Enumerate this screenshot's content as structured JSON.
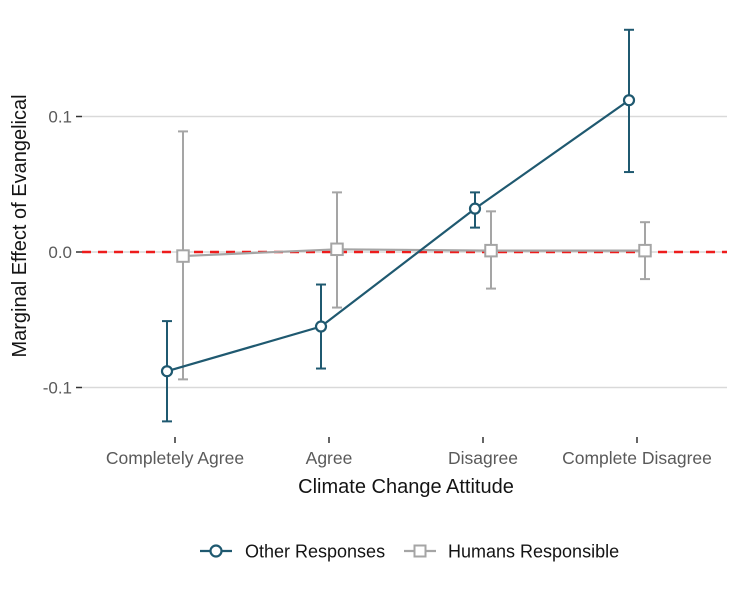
{
  "chart_data": {
    "type": "line",
    "title": "",
    "xlabel": "Climate Change Attitude",
    "ylabel": "Marginal Effect of Evangelical",
    "categories": [
      "Completely Agree",
      "Agree",
      "Disagree",
      "Complete Disagree"
    ],
    "yticks": [
      0.1,
      0.0,
      -0.1
    ],
    "ytick_labels": [
      "0.1",
      "0.0",
      "-0.1"
    ],
    "ylim": [
      -0.135,
      0.172
    ],
    "grid": "horizontal-major-only",
    "legend_position": "bottom",
    "reference_line": {
      "y": 0.0,
      "style": "dashed",
      "color": "#ED1C1C"
    },
    "series": [
      {
        "name": "Other Responses",
        "marker": "circle",
        "color": "#1F5970",
        "values": [
          -0.088,
          -0.055,
          0.032,
          0.112
        ],
        "ci_low": [
          -0.125,
          -0.086,
          0.018,
          0.059
        ],
        "ci_high": [
          -0.051,
          -0.024,
          0.044,
          0.164
        ]
      },
      {
        "name": "Humans Responsible",
        "marker": "square",
        "color": "#A5A5A5",
        "values": [
          -0.003,
          0.002,
          0.001,
          0.001
        ],
        "ci_low": [
          -0.094,
          -0.041,
          -0.027,
          -0.02
        ],
        "ci_high": [
          0.089,
          0.044,
          0.03,
          0.022
        ]
      }
    ]
  },
  "colors": {
    "gridline": "#D9D9D9",
    "tick_mark": "#333333",
    "tick_label": "#5A5A5A",
    "axis_title": "#141414",
    "marker_fill": "#FFFFFF",
    "background": "#FFFFFF"
  }
}
